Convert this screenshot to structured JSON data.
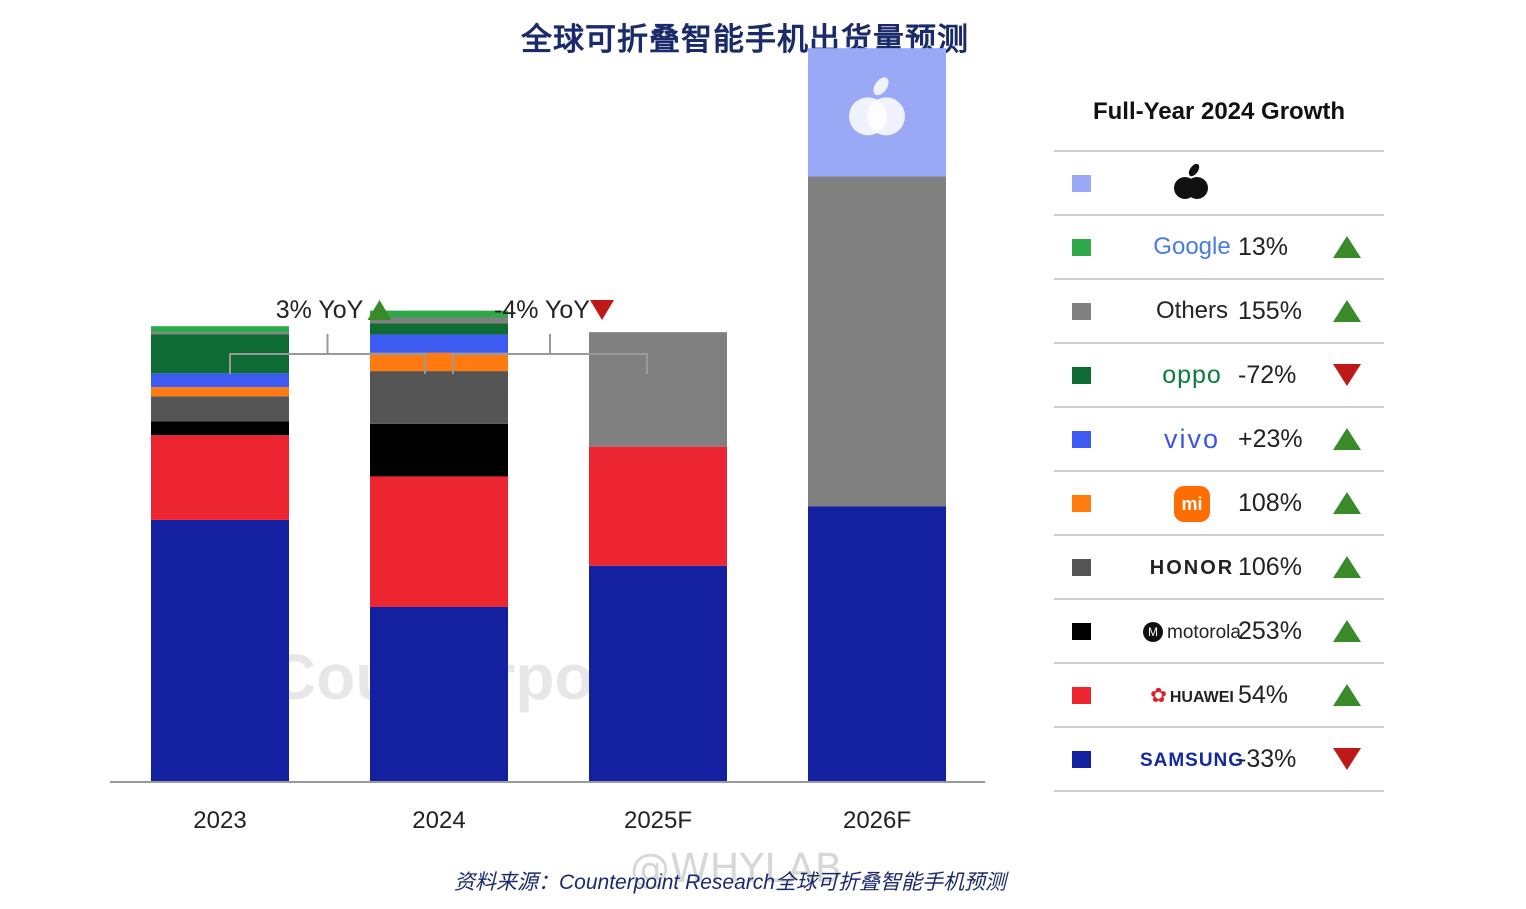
{
  "title": "全球可折叠智能手机出货量预测",
  "source": "资料来源：Counterpoint Research全球可折叠智能手机预测",
  "watermark": "@WHYLAB",
  "cp_watermark": "Counterpoint",
  "colors": {
    "Samsung": "#1321a0",
    "Huawei": "#ec2530",
    "Motorola": "#000000",
    "Honor": "#555555",
    "Xiaomi": "#ff7a0f",
    "vivo": "#3d5bf0",
    "OPPO": "#0d6b33",
    "Others": "#808080",
    "Google": "#2fa84a",
    "Apple": "#99a9f5",
    "up": "#3a8a2a",
    "down": "#c01818"
  },
  "chart_data": {
    "type": "bar",
    "stacked": true,
    "categories": [
      "2023",
      "2024",
      "2025F",
      "2026F"
    ],
    "series": [
      {
        "name": "Samsung",
        "values": [
          57,
          38,
          47,
          60
        ]
      },
      {
        "name": "Huawei",
        "values": [
          18.5,
          28.5,
          26,
          0
        ]
      },
      {
        "name": "Motorola",
        "values": [
          3,
          11.5,
          0,
          0
        ]
      },
      {
        "name": "Honor",
        "values": [
          5.5,
          11.5,
          0,
          0
        ]
      },
      {
        "name": "Xiaomi",
        "values": [
          2,
          4,
          0,
          0
        ]
      },
      {
        "name": "vivo",
        "values": [
          3,
          4,
          0,
          0
        ]
      },
      {
        "name": "OPPO",
        "values": [
          8.5,
          2.4,
          0,
          0
        ]
      },
      {
        "name": "Others",
        "values": [
          0.5,
          1.3,
          25,
          72
        ]
      },
      {
        "name": "Google",
        "values": [
          1.3,
          1.5,
          0,
          0
        ]
      },
      {
        "name": "Apple",
        "values": [
          0,
          0,
          0,
          28
        ]
      }
    ],
    "yoy_annotations": [
      {
        "text": "3% YoY",
        "direction": "up"
      },
      {
        "text": "-4% YoY",
        "direction": "down"
      }
    ],
    "apple_logo_on_bar": "2026F"
  },
  "legend": {
    "title": "Full-Year 2024 Growth",
    "rows": [
      {
        "brand": "Apple",
        "logo_icon": "apple-icon",
        "value": "",
        "arrow": ""
      },
      {
        "brand": "Google",
        "logo": "Google",
        "value": "13%",
        "arrow": "up"
      },
      {
        "brand": "Others",
        "logo": "Others",
        "value": "155%",
        "arrow": "up"
      },
      {
        "brand": "OPPO",
        "logo": "oppo",
        "value": "-72%",
        "arrow": "down"
      },
      {
        "brand": "vivo",
        "logo": "vivo",
        "value": "+23%",
        "arrow": "up"
      },
      {
        "brand": "Xiaomi",
        "logo": "mi",
        "value": "108%",
        "arrow": "up"
      },
      {
        "brand": "Honor",
        "logo": "HONOR",
        "value": "106%",
        "arrow": "up"
      },
      {
        "brand": "Motorola",
        "logo": "motorola",
        "value": "253%",
        "arrow": "up"
      },
      {
        "brand": "Huawei",
        "logo": "HUAWEI",
        "value": "54%",
        "arrow": "up"
      },
      {
        "brand": "Samsung",
        "logo": "SAMSUNG",
        "value": "-33%",
        "arrow": "down"
      }
    ]
  }
}
